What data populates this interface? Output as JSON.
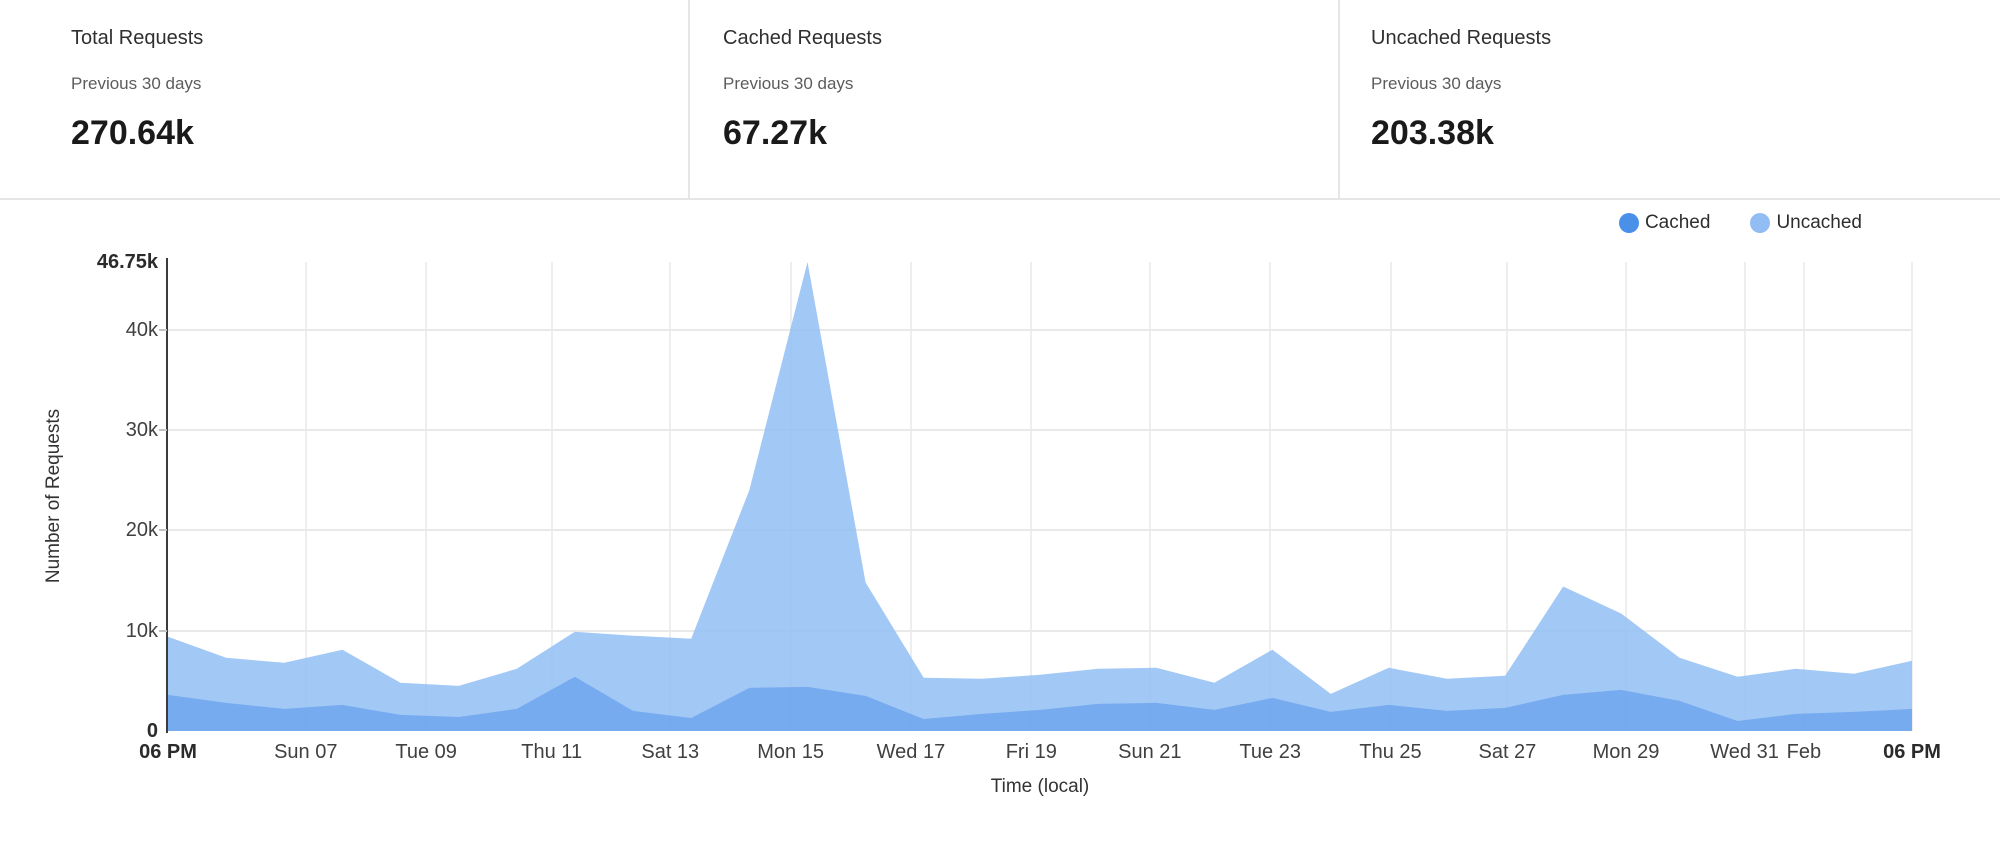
{
  "cards": [
    {
      "title": "Total Requests",
      "subtitle": "Previous 30 days",
      "value": "270.64k"
    },
    {
      "title": "Cached Requests",
      "subtitle": "Previous 30 days",
      "value": "67.27k"
    },
    {
      "title": "Uncached Requests",
      "subtitle": "Previous 30 days",
      "value": "203.38k"
    }
  ],
  "legend": [
    {
      "label": "Cached",
      "color": "#4a90e9"
    },
    {
      "label": "Uncached",
      "color": "#92bdf4"
    }
  ],
  "chart_data": {
    "type": "area",
    "title": "",
    "xlabel": "Time (local)",
    "ylabel": "Number of Requests",
    "y_unit": "k requests",
    "ylim": [
      0,
      46.75
    ],
    "grid": true,
    "legend_position": "top-right",
    "x_days": [
      0,
      1,
      2,
      3,
      4,
      5,
      6,
      7,
      8,
      9,
      10,
      11,
      12,
      13,
      14,
      15,
      16,
      17,
      18,
      19,
      20,
      21,
      22,
      23,
      24,
      25,
      26,
      27,
      28,
      29,
      30
    ],
    "series": [
      {
        "name": "Uncached",
        "fill": "rgba(146,190,245,0.85)",
        "values": [
          9.4,
          7.3,
          6.8,
          8.1,
          4.8,
          4.5,
          6.2,
          9.9,
          9.5,
          9.2,
          24.0,
          46.75,
          14.8,
          5.3,
          5.2,
          5.6,
          6.2,
          6.3,
          4.8,
          8.1,
          3.7,
          6.3,
          5.2,
          5.5,
          14.4,
          11.7,
          7.3,
          5.4,
          6.2,
          5.7,
          7.0
        ]
      },
      {
        "name": "Cached",
        "fill": "rgba(84,148,234,0.55)",
        "values": [
          3.6,
          2.8,
          2.2,
          2.6,
          1.6,
          1.4,
          2.2,
          5.4,
          2.0,
          1.3,
          4.3,
          4.4,
          3.5,
          1.2,
          1.7,
          2.1,
          2.7,
          2.8,
          2.1,
          3.3,
          1.9,
          2.6,
          2.0,
          2.3,
          3.6,
          4.1,
          3.0,
          1.0,
          1.7,
          1.9,
          2.2
        ]
      }
    ],
    "y_ticks": [
      {
        "label": "46.75k",
        "value": 46.75,
        "bold": true,
        "line": false
      },
      {
        "label": "40k",
        "value": 40,
        "bold": false,
        "line": true
      },
      {
        "label": "30k",
        "value": 30,
        "bold": false,
        "line": true
      },
      {
        "label": "20k",
        "value": 20,
        "bold": false,
        "line": true
      },
      {
        "label": "10k",
        "value": 10,
        "bold": false,
        "line": true
      },
      {
        "label": "0",
        "value": 0,
        "bold": true,
        "line": false
      }
    ],
    "x_ticks": [
      {
        "label": "06 PM",
        "pct": 0,
        "bold": true,
        "line": false
      },
      {
        "label": "Sun 07",
        "pct": 7.9,
        "bold": false,
        "line": true
      },
      {
        "label": "Tue 09",
        "pct": 14.8,
        "bold": false,
        "line": true
      },
      {
        "label": "Thu 11",
        "pct": 22.0,
        "bold": false,
        "line": true
      },
      {
        "label": "Sat 13",
        "pct": 28.8,
        "bold": false,
        "line": true
      },
      {
        "label": "Mon 15",
        "pct": 35.7,
        "bold": false,
        "line": true
      },
      {
        "label": "Wed 17",
        "pct": 42.6,
        "bold": false,
        "line": true
      },
      {
        "label": "Fri 19",
        "pct": 49.5,
        "bold": false,
        "line": true
      },
      {
        "label": "Sun 21",
        "pct": 56.3,
        "bold": false,
        "line": true
      },
      {
        "label": "Tue 23",
        "pct": 63.2,
        "bold": false,
        "line": true
      },
      {
        "label": "Thu 25",
        "pct": 70.1,
        "bold": false,
        "line": true
      },
      {
        "label": "Sat 27",
        "pct": 76.8,
        "bold": false,
        "line": true
      },
      {
        "label": "Mon 29",
        "pct": 83.6,
        "bold": false,
        "line": true
      },
      {
        "label": "Wed 31",
        "pct": 90.4,
        "bold": false,
        "line": true
      },
      {
        "label": "Feb",
        "pct": 93.8,
        "bold": false,
        "line": true
      },
      {
        "label": "06 PM",
        "pct": 100,
        "bold": true,
        "line": true
      }
    ]
  }
}
